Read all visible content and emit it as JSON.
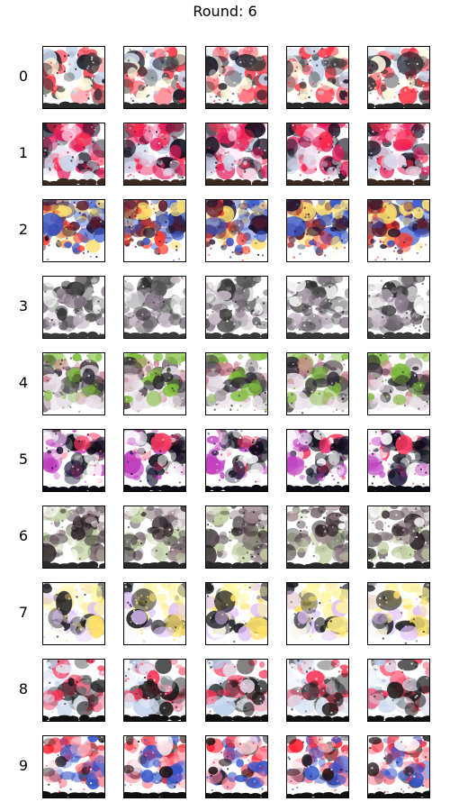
{
  "title": "Round: 6",
  "rows": [
    {
      "label": "0",
      "palette": [
        "#1a1a2a",
        "#ff3344",
        "#c7d6ea",
        "#fffbe0",
        "#3a3a3a"
      ],
      "bottom": "#2a2a2a"
    },
    {
      "label": "1",
      "palette": [
        "#ff2a4a",
        "#e31b5a",
        "#101020",
        "#ffe0f0",
        "#c7d6ea"
      ],
      "bottom": "#3a2a20"
    },
    {
      "label": "2",
      "palette": [
        "#1a1030",
        "#ff3a2a",
        "#5a1a2a",
        "#ffe070",
        "#3355cc"
      ],
      "bottom": "#ffffff"
    },
    {
      "label": "3",
      "palette": [
        "#2a2a2a",
        "#555555",
        "#8a7a8a",
        "#c9bcc9",
        "#ffffff"
      ],
      "bottom": "#3a3a3a"
    },
    {
      "label": "4",
      "palette": [
        "#2b2530",
        "#4a3a40",
        "#7fbf3a",
        "#d08090",
        "#e8e0e8"
      ],
      "bottom": "#ffffff"
    },
    {
      "label": "5",
      "palette": [
        "#0b0b14",
        "#ff3a60",
        "#ffffff",
        "#c040c0",
        "#202040"
      ],
      "bottom": "#0b0b14"
    },
    {
      "label": "6",
      "palette": [
        "#2a2025",
        "#6a5a60",
        "#a08a90",
        "#c0d0a0",
        "#ffffff"
      ],
      "bottom": "#2a2a2a"
    },
    {
      "label": "7",
      "palette": [
        "#fff6a0",
        "#ffe060",
        "#1a1a20",
        "#ffffff",
        "#e0c0ff"
      ],
      "bottom": "#ffffff"
    },
    {
      "label": "8",
      "palette": [
        "#b7cbe8",
        "#ff3355",
        "#1a1a1a",
        "#ffffff",
        "#e0e8f5"
      ],
      "bottom": "#101010"
    },
    {
      "label": "9",
      "palette": [
        "#ff2233",
        "#1a1010",
        "#ffffff",
        "#ff8090",
        "#3355cc"
      ],
      "bottom": "#101010"
    }
  ]
}
